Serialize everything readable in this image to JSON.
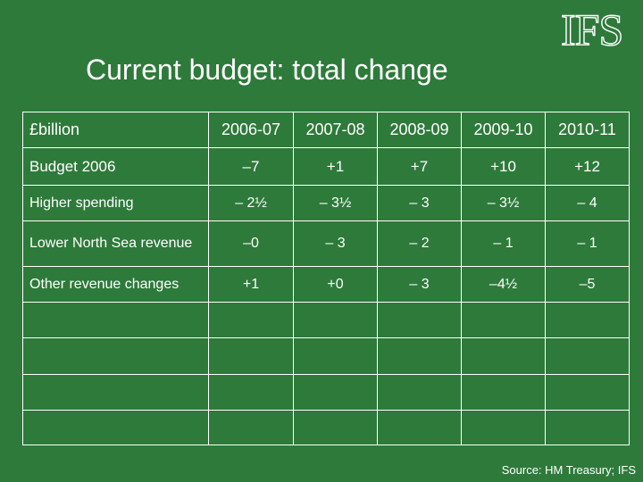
{
  "logo": "IFS",
  "title": "Current budget: total change",
  "table": {
    "columns": [
      "£billion",
      "2006-07",
      "2007-08",
      "2008-09",
      "2009-10",
      "2010-11"
    ],
    "rows": [
      {
        "label": "Budget 2006",
        "values": [
          "–7",
          "+1",
          "+7",
          "+10",
          "+12"
        ]
      },
      {
        "label": "Higher spending",
        "values": [
          "– 2½",
          "– 3½",
          "– 3",
          "– 3½",
          "– 4"
        ]
      },
      {
        "label": "Lower North Sea revenue",
        "values": [
          "–0",
          "– 3",
          "– 2",
          "– 1",
          "– 1"
        ]
      },
      {
        "label": "Other revenue changes",
        "values": [
          "+1",
          "+0",
          "– 3",
          "–4½",
          "–5"
        ]
      }
    ]
  },
  "source": "Source: HM Treasury; IFS"
}
